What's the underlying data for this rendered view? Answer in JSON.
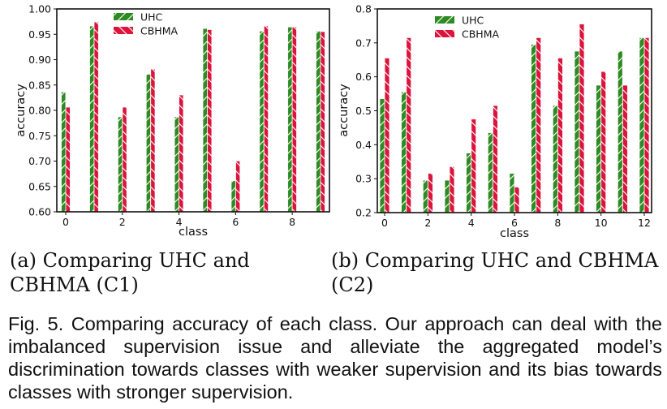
{
  "chart_data": [
    {
      "type": "bar",
      "title": "",
      "xlabel": "class",
      "ylabel": "accuracy",
      "ylim": [
        0.6,
        1.0
      ],
      "yticks": [
        "0.60",
        "0.65",
        "0.70",
        "0.75",
        "0.80",
        "0.85",
        "0.90",
        "0.95",
        "1.00"
      ],
      "xticks": [
        "0",
        "2",
        "4",
        "6",
        "8"
      ],
      "categories": [
        0,
        1,
        2,
        3,
        4,
        5,
        6,
        7,
        8,
        9
      ],
      "legend_position": "top-left",
      "grid": false,
      "series": [
        {
          "name": "UHC",
          "color": "#2e8b22",
          "values": [
            0.836,
            0.966,
            0.787,
            0.871,
            0.787,
            0.961,
            0.661,
            0.956,
            0.964,
            0.956
          ]
        },
        {
          "name": "CBHMA",
          "color": "#dc143c",
          "values": [
            0.806,
            0.974,
            0.806,
            0.881,
            0.83,
            0.959,
            0.7,
            0.966,
            0.964,
            0.955
          ]
        }
      ]
    },
    {
      "type": "bar",
      "title": "",
      "xlabel": "class",
      "ylabel": "accuracy",
      "ylim": [
        0.2,
        0.8
      ],
      "yticks": [
        "0.2",
        "0.3",
        "0.4",
        "0.5",
        "0.6",
        "0.7",
        "0.8"
      ],
      "xticks": [
        "0",
        "2",
        "4",
        "6",
        "8",
        "10",
        "12"
      ],
      "categories": [
        0,
        1,
        2,
        3,
        4,
        5,
        6,
        7,
        8,
        9,
        10,
        11,
        12
      ],
      "legend_position": "top-left",
      "grid": false,
      "series": [
        {
          "name": "UHC",
          "color": "#2e8b22",
          "values": [
            0.535,
            0.555,
            0.295,
            0.295,
            0.375,
            0.435,
            0.315,
            0.695,
            0.515,
            0.675,
            0.575,
            0.675,
            0.715
          ]
        },
        {
          "name": "CBHMA",
          "color": "#dc143c",
          "values": [
            0.655,
            0.715,
            0.315,
            0.335,
            0.475,
            0.515,
            0.275,
            0.715,
            0.655,
            0.755,
            0.615,
            0.575,
            0.715
          ]
        }
      ]
    }
  ],
  "subcaptions": {
    "a": "(a) Comparing UHC and CBHMA (C1)",
    "b": "(b) Comparing UHC and CBHMA (C2)"
  },
  "caption": "Fig. 5. Comparing accuracy of each class. Our approach can deal with the imbalanced supervision issue and alleviate the aggregated model’s discrimination towards classes with weaker supervision and its bias towards classes with stronger supervision."
}
